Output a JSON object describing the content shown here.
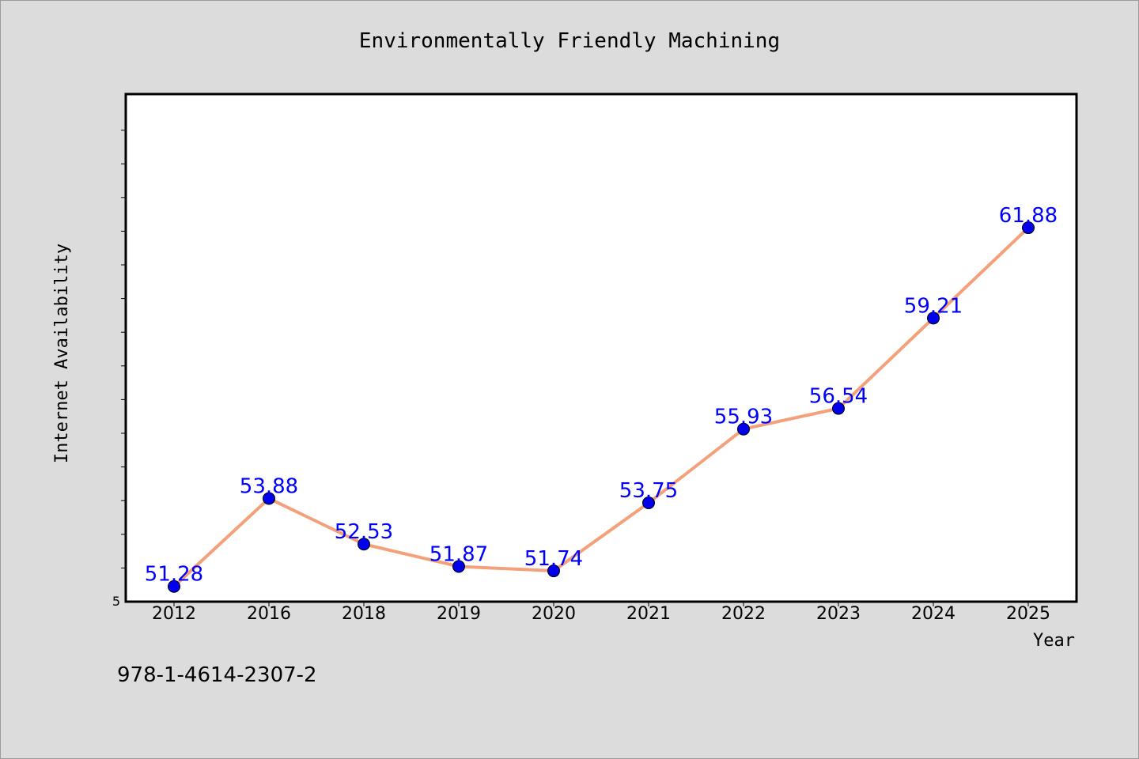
{
  "chart_data": {
    "type": "line",
    "title": "Environmentally Friendly Machining",
    "xlabel": "Year",
    "ylabel": "Internet Availability",
    "categories": [
      "2012",
      "2016",
      "2018",
      "2019",
      "2020",
      "2021",
      "2022",
      "2023",
      "2024",
      "2025"
    ],
    "series": [
      {
        "values": [
          51.28,
          53.88,
          52.53,
          51.87,
          51.74,
          53.75,
          55.93,
          56.54,
          59.21,
          61.88
        ],
        "labels": [
          "51.28",
          "53.88",
          "52.53",
          "51.87",
          "51.74",
          "53.75",
          "55.93",
          "56.54",
          "59.21",
          "61.88"
        ],
        "line_color": "#f4a07a",
        "marker_color": "#0000ee",
        "label_color": "#0000ff"
      }
    ],
    "ylim": [
      50.83,
      65.83
    ],
    "ytick_label": "5",
    "grid": false,
    "legend": "none"
  },
  "footer": {
    "isbn": "978-1-4614-2307-2"
  }
}
